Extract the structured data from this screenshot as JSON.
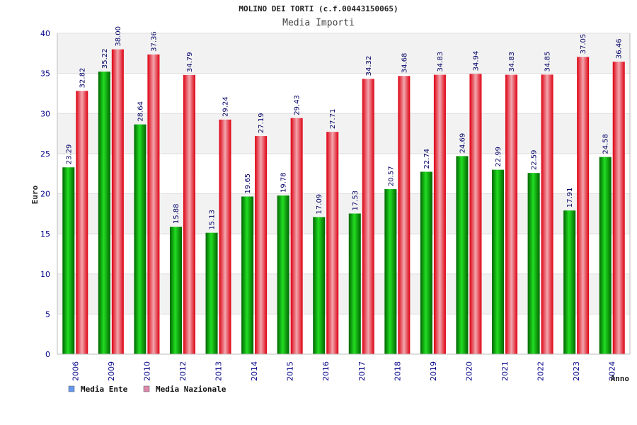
{
  "chart_data": {
    "type": "bar",
    "title": "MOLINO DEI TORTI (c.f.00443150065)",
    "subtitle": "Media Importi",
    "xlabel": "Anno",
    "ylabel": "Euro",
    "ylim": [
      0,
      40
    ],
    "yticks": [
      0,
      5,
      10,
      15,
      20,
      25,
      30,
      35,
      40
    ],
    "grid": true,
    "legend_position": "bottom-left",
    "categories": [
      "2006",
      "2009",
      "2010",
      "2012",
      "2013",
      "2014",
      "2015",
      "2016",
      "2017",
      "2018",
      "2019",
      "2020",
      "2021",
      "2022",
      "2023",
      "2024"
    ],
    "series": [
      {
        "name": "Media Ente",
        "color": "#00aa00",
        "legend_color": "#6699ee",
        "values": [
          23.29,
          35.22,
          28.64,
          15.88,
          15.13,
          19.65,
          19.78,
          17.09,
          17.53,
          20.57,
          22.74,
          24.69,
          22.99,
          22.59,
          17.91,
          24.58
        ],
        "labels": [
          "23.29",
          "35.22",
          "28.64",
          "15.88",
          "15.13",
          "19.65",
          "19.78",
          "17.09",
          "17.53",
          "20.57",
          "22.74",
          "24.69",
          "22.99",
          "22.59",
          "17.91",
          "24.58"
        ]
      },
      {
        "name": "Media Nazionale",
        "color": "#ee1122",
        "legend_color": "#dd88aa",
        "values": [
          32.82,
          38.0,
          37.36,
          34.79,
          29.24,
          27.19,
          29.43,
          27.71,
          34.32,
          34.68,
          34.83,
          34.94,
          34.83,
          34.85,
          37.05,
          36.46
        ],
        "labels": [
          "32.82",
          "38.00",
          "37.36",
          "34.79",
          "29.24",
          "27.19",
          "29.43",
          "27.71",
          "34.32",
          "34.68",
          "34.83",
          "34.94",
          "34.83",
          "34.85",
          "37.05",
          "36.46"
        ]
      }
    ]
  }
}
